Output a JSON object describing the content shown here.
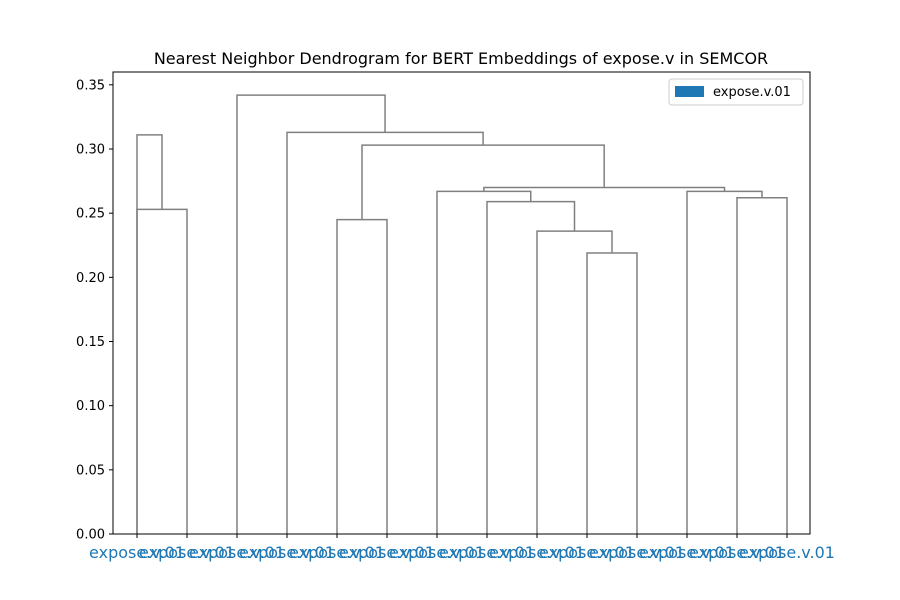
{
  "chart_data": {
    "type": "dendrogram",
    "title": "Nearest Neighbor Dendrogram for BERT Embeddings of expose.v in SEMCOR",
    "xlabel": "",
    "ylabel": "",
    "ylim": [
      0,
      0.36
    ],
    "yticks": [
      0.0,
      0.05,
      0.1,
      0.15,
      0.2,
      0.25,
      0.3,
      0.35
    ],
    "ytick_labels": [
      "0.00",
      "0.05",
      "0.10",
      "0.15",
      "0.20",
      "0.25",
      "0.30",
      "0.35"
    ],
    "grid": false,
    "legend": {
      "placement": "upper right",
      "entries": [
        {
          "name": "expose.v.01",
          "color": "#1f77b4"
        }
      ]
    },
    "leaf_color": "#1f77b4",
    "link_color": "#808080",
    "leaves": [
      "expose.v.01",
      "expose.v.01",
      "expose.v.01",
      "expose.v.01",
      "expose.v.01",
      "expose.v.01",
      "expose.v.01",
      "expose.v.01",
      "expose.v.01",
      "expose.v.01",
      "expose.v.01",
      "expose.v.01",
      "expose.v.01",
      "expose.v.01"
    ],
    "merges": [
      {
        "left": "L0",
        "right": "L1",
        "height": 0.253
      },
      {
        "left": "L4",
        "right": "L5",
        "height": 0.245
      },
      {
        "left": "L9",
        "right": "L10",
        "height": 0.219
      },
      {
        "left": "L8",
        "right": "M2",
        "height": 0.236
      },
      {
        "left": "L7",
        "right": "M3",
        "height": 0.259
      },
      {
        "left": "L6",
        "right": "M4",
        "height": 0.267
      },
      {
        "left": "L12",
        "right": "L13",
        "height": 0.262
      },
      {
        "left": "L11",
        "right": "M6",
        "height": 0.267
      },
      {
        "left": "M5",
        "right": "M7",
        "height": 0.27
      },
      {
        "left": "M1",
        "right": "M8",
        "height": 0.303
      },
      {
        "left": "L0",
        "right": "M0",
        "height": 0.311
      },
      {
        "left": "L3",
        "right": "M9",
        "height": 0.313
      },
      {
        "left": "L2",
        "right": "M11",
        "height": 0.342
      }
    ]
  }
}
